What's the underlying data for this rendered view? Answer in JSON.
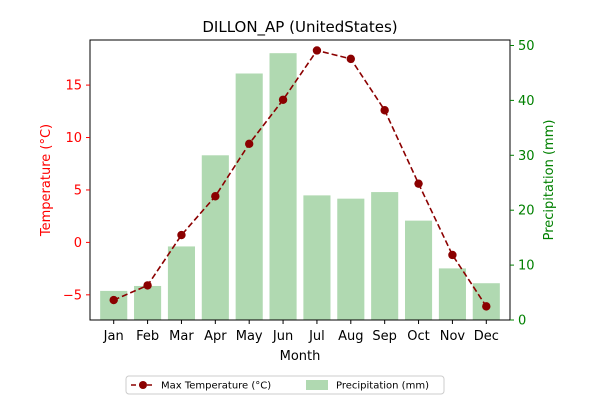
{
  "chart_data": {
    "type": "bar+line",
    "title": "DILLON_AP (UnitedStates)",
    "xlabel": "Month",
    "ylabel_left": "Temperature (°C)",
    "ylabel_right": "Precipitation (mm)",
    "categories": [
      "Jan",
      "Feb",
      "Mar",
      "Apr",
      "May",
      "Jun",
      "Jul",
      "Aug",
      "Sep",
      "Oct",
      "Nov",
      "Dec"
    ],
    "ylim_left": [
      -7.4,
      19.3
    ],
    "ylim_right": [
      0,
      51
    ],
    "yticks_left": [
      -5,
      0,
      5,
      10,
      15
    ],
    "yticks_right": [
      0,
      10,
      20,
      30,
      40,
      50
    ],
    "grid": false,
    "legend_position": "below",
    "series": [
      {
        "name": "Max Temperature (°C)",
        "kind": "line",
        "axis": "left",
        "color": "#8b0000",
        "linestyle": "dashed",
        "marker": "circle",
        "values": [
          -5.5,
          -4.1,
          0.7,
          4.4,
          9.4,
          13.6,
          18.3,
          17.5,
          12.6,
          5.6,
          -1.2,
          -6.1
        ]
      },
      {
        "name": "Precipitation (mm)",
        "kind": "bar",
        "axis": "right",
        "color": "#b0d9b1",
        "values": [
          5.3,
          6.2,
          13.4,
          30.0,
          44.9,
          48.6,
          22.7,
          22.1,
          23.3,
          18.1,
          9.4,
          6.7
        ]
      }
    ],
    "left_axis_color": "#ff0000",
    "right_axis_color": "#008000"
  }
}
